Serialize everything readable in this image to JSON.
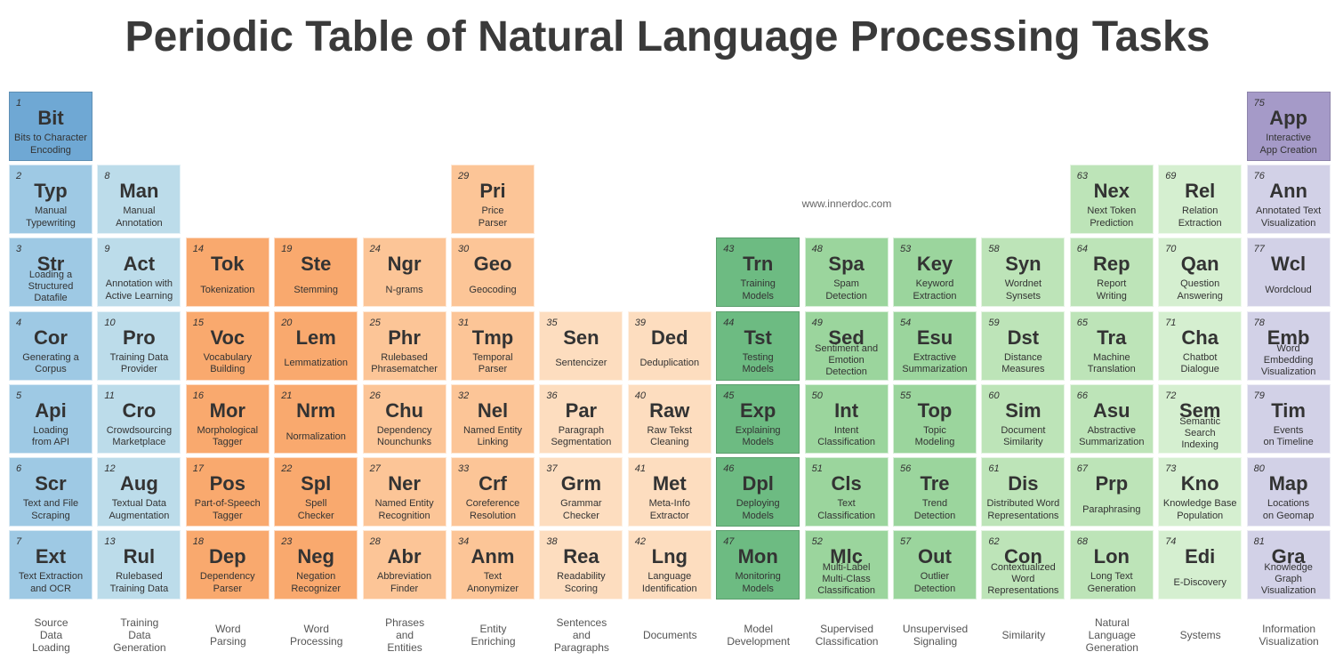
{
  "title": "Periodic Table of Natural Language Processing Tasks",
  "watermark": "www.innerdoc.com",
  "colors": {
    "c1": "#6fa8d4",
    "c2": "#9ec9e4",
    "c3": "#bcdcea",
    "o1": "#f9a96e",
    "o2": "#fcc597",
    "o3": "#fdddbf",
    "g1": "#6dbb82",
    "g2": "#9bd59d",
    "g3": "#bde4b8",
    "g4": "#d5efd0",
    "p1": "#a59ac8",
    "p2": "#d2d1e7"
  },
  "categories": [
    "Source\nData\nLoading",
    "Training\nData\nGeneration",
    "Word\nParsing",
    "Word\nProcessing",
    "Phrases\nand\nEntities",
    "Entity\nEnriching",
    "Sentences\nand\nParagraphs",
    "Documents",
    "Model\nDevelopment",
    "Supervised\nClassification",
    "Unsupervised\nSignaling",
    "Similarity",
    "Natural\nLanguage\nGeneration",
    "Systems",
    "Information\nVisualization"
  ],
  "elements": [
    {
      "n": "1",
      "s": "Bit",
      "name": "Bits to Character\nEncoding",
      "col": 1,
      "row": 1,
      "c": "c1"
    },
    {
      "n": "2",
      "s": "Typ",
      "name": "Manual\nTypewriting",
      "col": 1,
      "row": 2,
      "c": "c2"
    },
    {
      "n": "3",
      "s": "Str",
      "name": "Loading a\nStructured\nDatafile",
      "col": 1,
      "row": 3,
      "c": "c2"
    },
    {
      "n": "4",
      "s": "Cor",
      "name": "Generating a\nCorpus",
      "col": 1,
      "row": 4,
      "c": "c2"
    },
    {
      "n": "5",
      "s": "Api",
      "name": "Loading\nfrom API",
      "col": 1,
      "row": 5,
      "c": "c2"
    },
    {
      "n": "6",
      "s": "Scr",
      "name": "Text and File\nScraping",
      "col": 1,
      "row": 6,
      "c": "c2"
    },
    {
      "n": "7",
      "s": "Ext",
      "name": "Text Extraction\nand OCR",
      "col": 1,
      "row": 7,
      "c": "c2"
    },
    {
      "n": "8",
      "s": "Man",
      "name": "Manual\nAnnotation",
      "col": 2,
      "row": 2,
      "c": "c3"
    },
    {
      "n": "9",
      "s": "Act",
      "name": "Annotation with\nActive Learning",
      "col": 2,
      "row": 3,
      "c": "c3"
    },
    {
      "n": "10",
      "s": "Pro",
      "name": "Training Data\nProvider",
      "col": 2,
      "row": 4,
      "c": "c3"
    },
    {
      "n": "11",
      "s": "Cro",
      "name": "Crowdsourcing\nMarketplace",
      "col": 2,
      "row": 5,
      "c": "c3"
    },
    {
      "n": "12",
      "s": "Aug",
      "name": "Textual Data\nAugmentation",
      "col": 2,
      "row": 6,
      "c": "c3"
    },
    {
      "n": "13",
      "s": "Rul",
      "name": "Rulebased\nTraining Data",
      "col": 2,
      "row": 7,
      "c": "c3"
    },
    {
      "n": "14",
      "s": "Tok",
      "name": "Tokenization",
      "col": 3,
      "row": 3,
      "c": "o1"
    },
    {
      "n": "15",
      "s": "Voc",
      "name": "Vocabulary\nBuilding",
      "col": 3,
      "row": 4,
      "c": "o1"
    },
    {
      "n": "16",
      "s": "Mor",
      "name": "Morphological\nTagger",
      "col": 3,
      "row": 5,
      "c": "o1"
    },
    {
      "n": "17",
      "s": "Pos",
      "name": "Part-of-Speech\nTagger",
      "col": 3,
      "row": 6,
      "c": "o1"
    },
    {
      "n": "18",
      "s": "Dep",
      "name": "Dependency\nParser",
      "col": 3,
      "row": 7,
      "c": "o1"
    },
    {
      "n": "19",
      "s": "Ste",
      "name": "Stemming",
      "col": 4,
      "row": 3,
      "c": "o1"
    },
    {
      "n": "20",
      "s": "Lem",
      "name": "Lemmatization",
      "col": 4,
      "row": 4,
      "c": "o1"
    },
    {
      "n": "21",
      "s": "Nrm",
      "name": "Normalization",
      "col": 4,
      "row": 5,
      "c": "o1"
    },
    {
      "n": "22",
      "s": "Spl",
      "name": "Spell\nChecker",
      "col": 4,
      "row": 6,
      "c": "o1"
    },
    {
      "n": "23",
      "s": "Neg",
      "name": "Negation\nRecognizer",
      "col": 4,
      "row": 7,
      "c": "o1"
    },
    {
      "n": "24",
      "s": "Ngr",
      "name": "N-grams",
      "col": 5,
      "row": 3,
      "c": "o2"
    },
    {
      "n": "25",
      "s": "Phr",
      "name": "Rulebased\nPhrasematcher",
      "col": 5,
      "row": 4,
      "c": "o2"
    },
    {
      "n": "26",
      "s": "Chu",
      "name": "Dependency\nNounchunks",
      "col": 5,
      "row": 5,
      "c": "o2"
    },
    {
      "n": "27",
      "s": "Ner",
      "name": "Named Entity\nRecognition",
      "col": 5,
      "row": 6,
      "c": "o2"
    },
    {
      "n": "28",
      "s": "Abr",
      "name": "Abbreviation\nFinder",
      "col": 5,
      "row": 7,
      "c": "o2"
    },
    {
      "n": "29",
      "s": "Pri",
      "name": "Price\nParser",
      "col": 6,
      "row": 2,
      "c": "o2"
    },
    {
      "n": "30",
      "s": "Geo",
      "name": "Geocoding",
      "col": 6,
      "row": 3,
      "c": "o2"
    },
    {
      "n": "31",
      "s": "Tmp",
      "name": "Temporal\nParser",
      "col": 6,
      "row": 4,
      "c": "o2"
    },
    {
      "n": "32",
      "s": "Nel",
      "name": "Named Entity\nLinking",
      "col": 6,
      "row": 5,
      "c": "o2"
    },
    {
      "n": "33",
      "s": "Crf",
      "name": "Coreference\nResolution",
      "col": 6,
      "row": 6,
      "c": "o2"
    },
    {
      "n": "34",
      "s": "Anm",
      "name": "Text\nAnonymizer",
      "col": 6,
      "row": 7,
      "c": "o2"
    },
    {
      "n": "35",
      "s": "Sen",
      "name": "Sentencizer",
      "col": 7,
      "row": 4,
      "c": "o3"
    },
    {
      "n": "36",
      "s": "Par",
      "name": "Paragraph\nSegmentation",
      "col": 7,
      "row": 5,
      "c": "o3"
    },
    {
      "n": "37",
      "s": "Grm",
      "name": "Grammar\nChecker",
      "col": 7,
      "row": 6,
      "c": "o3"
    },
    {
      "n": "38",
      "s": "Rea",
      "name": "Readability\nScoring",
      "col": 7,
      "row": 7,
      "c": "o3"
    },
    {
      "n": "39",
      "s": "Ded",
      "name": "Deduplication",
      "col": 8,
      "row": 4,
      "c": "o3"
    },
    {
      "n": "40",
      "s": "Raw",
      "name": "Raw Tekst\nCleaning",
      "col": 8,
      "row": 5,
      "c": "o3"
    },
    {
      "n": "41",
      "s": "Met",
      "name": "Meta-Info\nExtractor",
      "col": 8,
      "row": 6,
      "c": "o3"
    },
    {
      "n": "42",
      "s": "Lng",
      "name": "Language\nIdentification",
      "col": 8,
      "row": 7,
      "c": "o3"
    },
    {
      "n": "43",
      "s": "Trn",
      "name": "Training\nModels",
      "col": 9,
      "row": 3,
      "c": "g1"
    },
    {
      "n": "44",
      "s": "Tst",
      "name": "Testing\nModels",
      "col": 9,
      "row": 4,
      "c": "g1"
    },
    {
      "n": "45",
      "s": "Exp",
      "name": "Explaining\nModels",
      "col": 9,
      "row": 5,
      "c": "g1"
    },
    {
      "n": "46",
      "s": "Dpl",
      "name": "Deploying\nModels",
      "col": 9,
      "row": 6,
      "c": "g1"
    },
    {
      "n": "47",
      "s": "Mon",
      "name": "Monitoring\nModels",
      "col": 9,
      "row": 7,
      "c": "g1"
    },
    {
      "n": "48",
      "s": "Spa",
      "name": "Spam\nDetection",
      "col": 10,
      "row": 3,
      "c": "g2"
    },
    {
      "n": "49",
      "s": "Sed",
      "name": "Sentiment and\nEmotion\nDetection",
      "col": 10,
      "row": 4,
      "c": "g2"
    },
    {
      "n": "50",
      "s": "Int",
      "name": "Intent\nClassification",
      "col": 10,
      "row": 5,
      "c": "g2"
    },
    {
      "n": "51",
      "s": "Cls",
      "name": "Text\nClassification",
      "col": 10,
      "row": 6,
      "c": "g2"
    },
    {
      "n": "52",
      "s": "Mlc",
      "name": "Multi-Label\nMulti-Class\nClassification",
      "col": 10,
      "row": 7,
      "c": "g2"
    },
    {
      "n": "53",
      "s": "Key",
      "name": "Keyword\nExtraction",
      "col": 11,
      "row": 3,
      "c": "g2"
    },
    {
      "n": "54",
      "s": "Esu",
      "name": "Extractive\nSummarization",
      "col": 11,
      "row": 4,
      "c": "g2"
    },
    {
      "n": "55",
      "s": "Top",
      "name": "Topic\nModeling",
      "col": 11,
      "row": 5,
      "c": "g2"
    },
    {
      "n": "56",
      "s": "Tre",
      "name": "Trend\nDetection",
      "col": 11,
      "row": 6,
      "c": "g2"
    },
    {
      "n": "57",
      "s": "Out",
      "name": "Outlier\nDetection",
      "col": 11,
      "row": 7,
      "c": "g2"
    },
    {
      "n": "58",
      "s": "Syn",
      "name": "Wordnet\nSynsets",
      "col": 12,
      "row": 3,
      "c": "g3"
    },
    {
      "n": "59",
      "s": "Dst",
      "name": "Distance\nMeasures",
      "col": 12,
      "row": 4,
      "c": "g3"
    },
    {
      "n": "60",
      "s": "Sim",
      "name": "Document\nSimilarity",
      "col": 12,
      "row": 5,
      "c": "g3"
    },
    {
      "n": "61",
      "s": "Dis",
      "name": "Distributed Word\nRepresentations",
      "col": 12,
      "row": 6,
      "c": "g3"
    },
    {
      "n": "62",
      "s": "Con",
      "name": "Contextualized\nWord\nRepresentations",
      "col": 12,
      "row": 7,
      "c": "g3"
    },
    {
      "n": "63",
      "s": "Nex",
      "name": "Next Token\nPrediction",
      "col": 13,
      "row": 2,
      "c": "g3"
    },
    {
      "n": "64",
      "s": "Rep",
      "name": "Report\nWriting",
      "col": 13,
      "row": 3,
      "c": "g3"
    },
    {
      "n": "65",
      "s": "Tra",
      "name": "Machine\nTranslation",
      "col": 13,
      "row": 4,
      "c": "g3"
    },
    {
      "n": "66",
      "s": "Asu",
      "name": "Abstractive\nSummarization",
      "col": 13,
      "row": 5,
      "c": "g3"
    },
    {
      "n": "67",
      "s": "Prp",
      "name": "Paraphrasing",
      "col": 13,
      "row": 6,
      "c": "g3"
    },
    {
      "n": "68",
      "s": "Lon",
      "name": "Long Text\nGeneration",
      "col": 13,
      "row": 7,
      "c": "g3"
    },
    {
      "n": "69",
      "s": "Rel",
      "name": "Relation\nExtraction",
      "col": 14,
      "row": 2,
      "c": "g4"
    },
    {
      "n": "70",
      "s": "Qan",
      "name": "Question\nAnswering",
      "col": 14,
      "row": 3,
      "c": "g4"
    },
    {
      "n": "71",
      "s": "Cha",
      "name": "Chatbot\nDialogue",
      "col": 14,
      "row": 4,
      "c": "g4"
    },
    {
      "n": "72",
      "s": "Sem",
      "name": "Semantic\nSearch\nIndexing",
      "col": 14,
      "row": 5,
      "c": "g4"
    },
    {
      "n": "73",
      "s": "Kno",
      "name": "Knowledge Base\nPopulation",
      "col": 14,
      "row": 6,
      "c": "g4"
    },
    {
      "n": "74",
      "s": "Edi",
      "name": "E-Discovery",
      "col": 14,
      "row": 7,
      "c": "g4"
    },
    {
      "n": "75",
      "s": "App",
      "name": "Interactive\nApp Creation",
      "col": 15,
      "row": 1,
      "c": "p1"
    },
    {
      "n": "76",
      "s": "Ann",
      "name": "Annotated Text\nVisualization",
      "col": 15,
      "row": 2,
      "c": "p2"
    },
    {
      "n": "77",
      "s": "Wcl",
      "name": "Wordcloud",
      "col": 15,
      "row": 3,
      "c": "p2"
    },
    {
      "n": "78",
      "s": "Emb",
      "name": "Word\nEmbedding\nVisualization",
      "col": 15,
      "row": 4,
      "c": "p2"
    },
    {
      "n": "79",
      "s": "Tim",
      "name": "Events\non Timeline",
      "col": 15,
      "row": 5,
      "c": "p2"
    },
    {
      "n": "80",
      "s": "Map",
      "name": "Locations\non Geomap",
      "col": 15,
      "row": 6,
      "c": "p2"
    },
    {
      "n": "81",
      "s": "Gra",
      "name": "Knowledge\nGraph\nVisualization",
      "col": 15,
      "row": 7,
      "c": "p2"
    }
  ]
}
